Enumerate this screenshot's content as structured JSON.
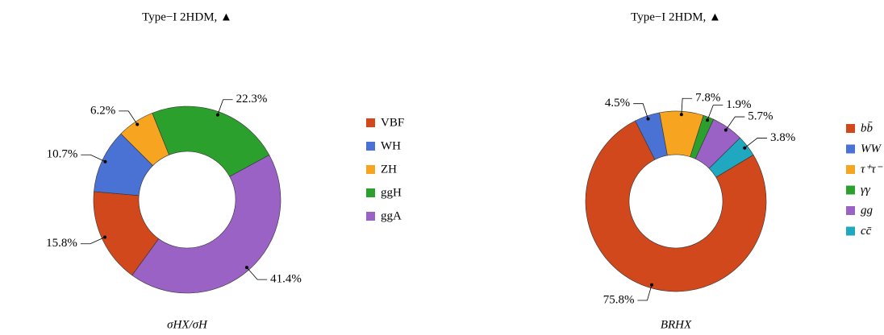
{
  "chart_data": [
    {
      "type": "pie",
      "title": "Type−I 2HDM, ▲",
      "xlabel": "σHX/σH",
      "categories": [
        "VBF",
        "WH",
        "ZH",
        "ggH",
        "ggA"
      ],
      "values": [
        15.8,
        10.7,
        6.2,
        22.3,
        41.4
      ],
      "value_labels": [
        "15.8%",
        "10.7%",
        "6.2%",
        "22.3%",
        "41.4%"
      ],
      "colors": [
        "#d0481c",
        "#4a72d4",
        "#f7a520",
        "#2ca02c",
        "#9a62c4"
      ]
    },
    {
      "type": "pie",
      "title": "Type−I 2HDM, ▲",
      "xlabel": "BRHX",
      "categories": [
        "bb̄",
        "WW",
        "τ⁺τ⁻",
        "γγ",
        "gg",
        "cc̄"
      ],
      "values": [
        75.8,
        4.5,
        7.8,
        1.9,
        5.7,
        3.8
      ],
      "value_labels": [
        "75.8%",
        "4.5%",
        "7.8%",
        "1.9%",
        "5.7%",
        "3.8%"
      ],
      "colors": [
        "#d0481c",
        "#4a72d4",
        "#f7a520",
        "#2ca02c",
        "#9a62c4",
        "#20a8c0"
      ]
    }
  ]
}
